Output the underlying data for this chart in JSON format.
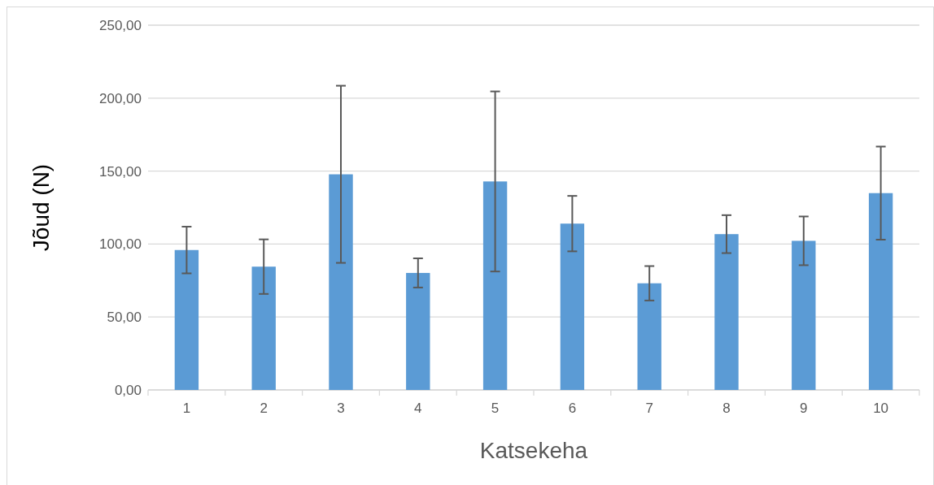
{
  "chart_data": {
    "type": "bar",
    "xlabel": "Katsekeha",
    "ylabel": "Jõud (N)",
    "categories": [
      "1",
      "2",
      "3",
      "4",
      "5",
      "6",
      "7",
      "8",
      "9",
      "10"
    ],
    "values": [
      95.9,
      84.5,
      147.8,
      80.2,
      142.9,
      114.0,
      73.1,
      106.8,
      102.2,
      134.9
    ],
    "errors": [
      16,
      18.7,
      60.7,
      10,
      61.7,
      19,
      11.8,
      13,
      16.7,
      31.9
    ],
    "color": "#5b9bd5",
    "ylim": [
      0,
      250
    ],
    "yticks": [
      {
        "value": 0,
        "label": "0,00"
      },
      {
        "value": 50,
        "label": "50,00"
      },
      {
        "value": 100,
        "label": "100,00"
      },
      {
        "value": 150,
        "label": "150,00"
      },
      {
        "value": 200,
        "label": "200,00"
      },
      {
        "value": 250,
        "label": "250,00"
      }
    ],
    "grid": "y"
  }
}
